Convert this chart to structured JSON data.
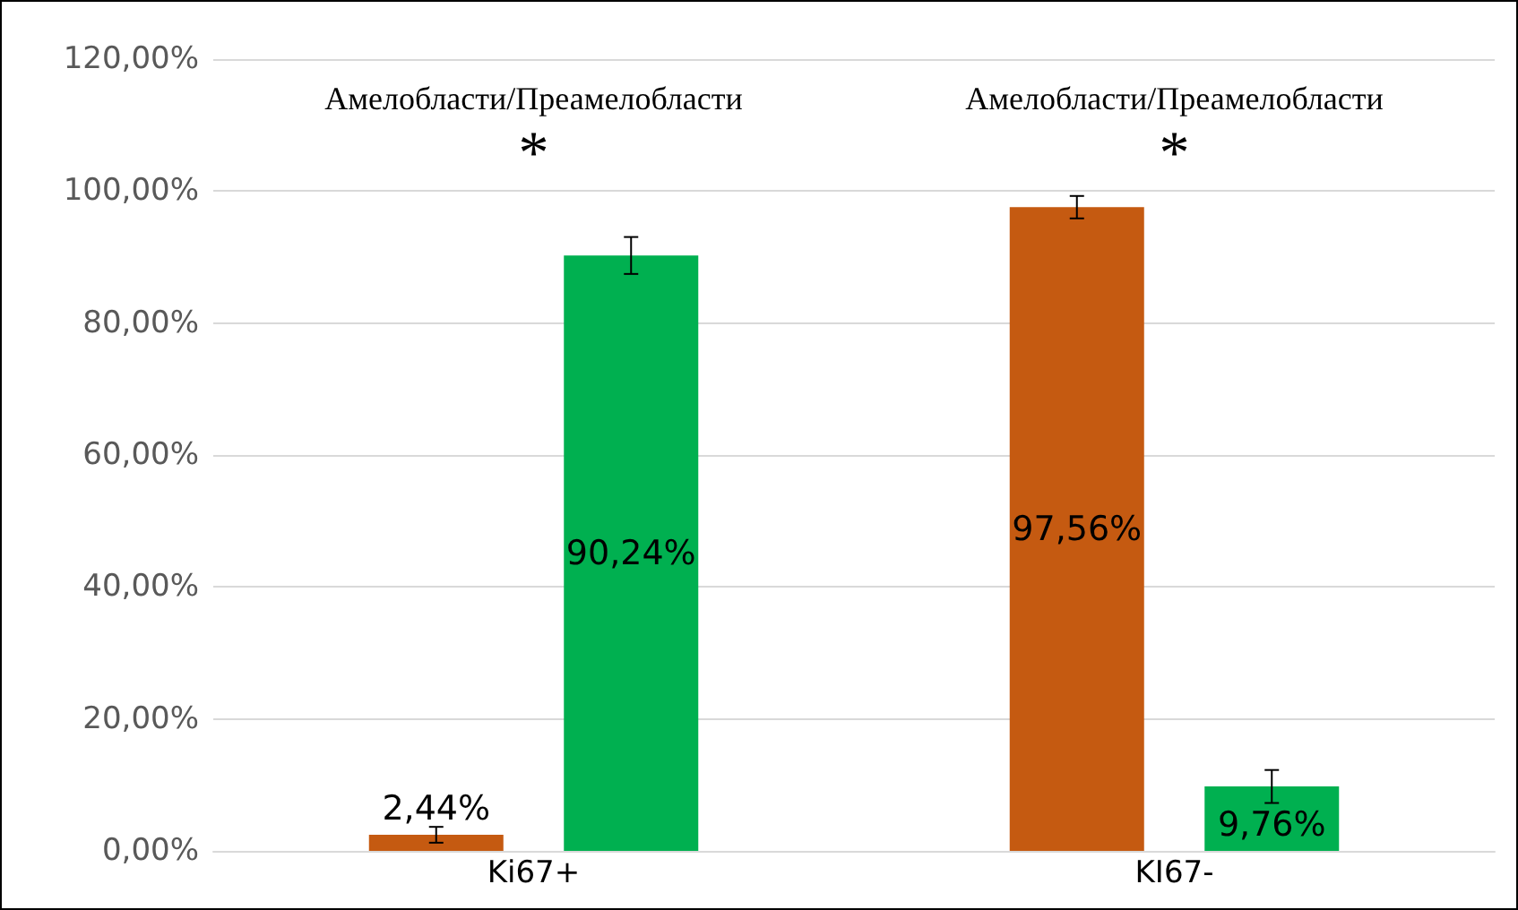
{
  "chart_data": {
    "type": "bar",
    "categories": [
      "Ki67+",
      "KI67-"
    ],
    "series": [
      {
        "color": "#c55a11",
        "values": [
          2.44,
          97.56
        ],
        "errors": [
          1.2,
          1.7
        ],
        "value_labels": [
          "2,44%",
          "97,56%"
        ]
      },
      {
        "color": "#00b050",
        "values": [
          90.24,
          9.76
        ],
        "errors": [
          2.8,
          2.5
        ],
        "value_labels": [
          "90,24%",
          "9,76%"
        ]
      }
    ],
    "ylim": [
      0,
      120
    ],
    "yticks": [
      {
        "value": 0,
        "label": "0,00%"
      },
      {
        "value": 20,
        "label": "20,00%"
      },
      {
        "value": 40,
        "label": "40,00%"
      },
      {
        "value": 60,
        "label": "60,00%"
      },
      {
        "value": 80,
        "label": "80,00%"
      },
      {
        "value": 100,
        "label": "100,00%"
      },
      {
        "value": 120,
        "label": "120,00%"
      }
    ],
    "grid": "y",
    "annotations": [
      "Амелобласти/Преамелобласти",
      "Амелобласти/Преамелобласти",
      "*",
      "*"
    ]
  }
}
